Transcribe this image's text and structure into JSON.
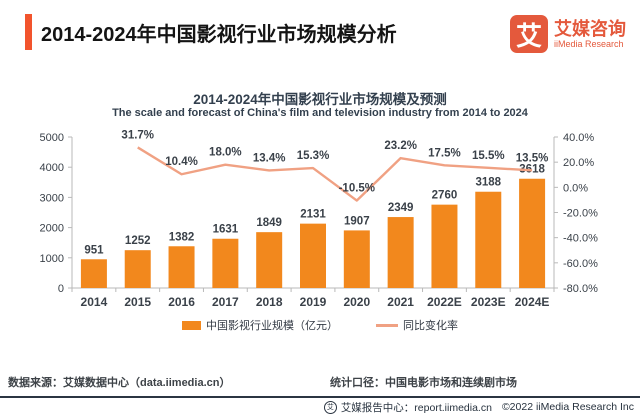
{
  "colors": {
    "brand": "#e4593c",
    "accent_bar": "#f2542d",
    "bar": "#f2881d",
    "line": "#f0a183",
    "axis": "#b9b9b9",
    "label_text": "#3a4149"
  },
  "header": {
    "title": "2014-2024年中国影视行业市场规模分析",
    "logo": {
      "mark": "艾",
      "name_cn": "艾媒咨询",
      "name_en": "iiMedia Research"
    }
  },
  "chart": {
    "title": "2014-2024年中国影视行业市场规模及预测",
    "subtitle": "The scale and forecast of China's film and television industry from 2014 to 2024"
  },
  "chart_data": {
    "type": "bar",
    "combo": "bar+line",
    "categories": [
      "2014",
      "2015",
      "2016",
      "2017",
      "2018",
      "2019",
      "2020",
      "2021",
      "2022E",
      "2023E",
      "2024E"
    ],
    "series": [
      {
        "name": "中国影视行业规模（亿元）",
        "type": "bar",
        "y_axis": "left",
        "color": "#f2881d",
        "values": [
          951,
          1252,
          1382,
          1631,
          1849,
          2131,
          1907,
          2349,
          2760,
          3188,
          3618
        ]
      },
      {
        "name": "同比变化率",
        "type": "line",
        "y_axis": "right",
        "color": "#f0a183",
        "values": [
          null,
          31.7,
          10.4,
          18.0,
          13.4,
          15.3,
          -10.5,
          23.2,
          17.5,
          15.5,
          13.5
        ],
        "labels": [
          null,
          "31.7%",
          "10.4%",
          "18.0%",
          "13.4%",
          "15.3%",
          "-10.5%",
          "23.2%",
          "17.5%",
          "15.5%",
          "13.5%"
        ]
      }
    ],
    "left_axis": {
      "min": 0,
      "max": 5000,
      "tick_step": 1000,
      "ticks": [
        "5000",
        "4000",
        "3000",
        "2000",
        "1000",
        "0"
      ]
    },
    "right_axis": {
      "min": -80,
      "max": 40,
      "tick_step": 20,
      "ticks": [
        "40.0%",
        "20.0%",
        "0.0%",
        "-20.0%",
        "-40.0%",
        "-60.0%",
        "-80.0%"
      ]
    },
    "grid": false,
    "legend_position": "bottom"
  },
  "source": {
    "data_source": "数据来源：艾媒数据中心（data.iimedia.cn）",
    "scope": "统计口径：中国电影市场和连续剧市场"
  },
  "footer": {
    "icon": "艾",
    "report_center": "艾媒报告中心：report.iimedia.cn",
    "copyright": "©2022  iiMedia Research  Inc"
  }
}
